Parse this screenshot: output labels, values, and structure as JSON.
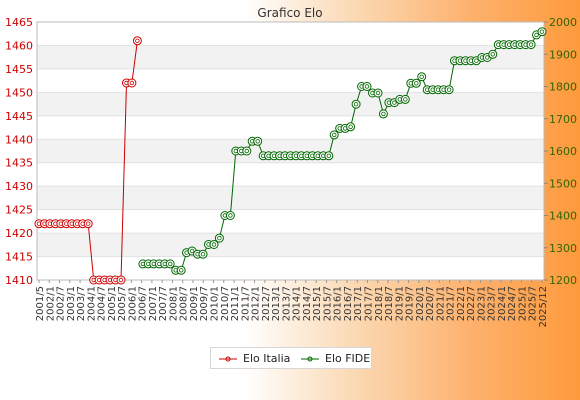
{
  "chart_data": {
    "type": "line",
    "title": "Grafico Elo",
    "x_ticks": [
      "2001/5",
      "2002/1",
      "2002/7",
      "2003/1",
      "2003/7",
      "2004/1",
      "2004/7",
      "2005/1",
      "2005/7",
      "2006/1",
      "2006/7",
      "2007/1",
      "2007/7",
      "2008/1",
      "2008/7",
      "2009/1",
      "2009/7",
      "2010/1",
      "2010/7",
      "2011/1",
      "2011/7",
      "2012/1",
      "2012/7",
      "2013/1",
      "2013/7",
      "2014/1",
      "2014/7",
      "2015/1",
      "2015/7",
      "2016/1",
      "2016/7",
      "2017/1",
      "2017/7",
      "2018/1",
      "2018/7",
      "2019/1",
      "2019/7",
      "2020/1",
      "2020/7",
      "2021/1",
      "2021/7",
      "2022/1",
      "2022/7",
      "2023/1",
      "2023/7",
      "2024/1",
      "2024/7",
      "2025/1",
      "2025/7",
      "2025/12"
    ],
    "series": [
      {
        "name": "Elo Italia",
        "color": "#cc0000",
        "axis": "left",
        "points": [
          [
            0,
            1422
          ],
          [
            1,
            1422
          ],
          [
            2,
            1422
          ],
          [
            3,
            1422
          ],
          [
            4,
            1422
          ],
          [
            5,
            1422
          ],
          [
            6,
            1422
          ],
          [
            7,
            1422
          ],
          [
            8,
            1422
          ],
          [
            9,
            1422
          ],
          [
            10,
            1410
          ],
          [
            11,
            1410
          ],
          [
            12,
            1410
          ],
          [
            13,
            1410
          ],
          [
            14,
            1410
          ],
          [
            15,
            1410
          ],
          [
            16,
            1452
          ],
          [
            17,
            1452
          ],
          [
            18,
            1461
          ]
        ]
      },
      {
        "name": "Elo FIDE",
        "color": "#006600",
        "axis": "right",
        "points": [
          [
            19,
            1250
          ],
          [
            20,
            1250
          ],
          [
            21,
            1250
          ],
          [
            22,
            1250
          ],
          [
            23,
            1250
          ],
          [
            24,
            1250
          ],
          [
            25,
            1230
          ],
          [
            26,
            1230
          ],
          [
            27,
            1285
          ],
          [
            28,
            1290
          ],
          [
            29,
            1280
          ],
          [
            30,
            1280
          ],
          [
            31,
            1310
          ],
          [
            32,
            1310
          ],
          [
            33,
            1330
          ],
          [
            34,
            1400
          ],
          [
            35,
            1400
          ],
          [
            36,
            1600
          ],
          [
            37,
            1600
          ],
          [
            38,
            1600
          ],
          [
            39,
            1630
          ],
          [
            40,
            1630
          ],
          [
            41,
            1585
          ],
          [
            42,
            1585
          ],
          [
            43,
            1585
          ],
          [
            44,
            1585
          ],
          [
            45,
            1585
          ],
          [
            46,
            1585
          ],
          [
            47,
            1585
          ],
          [
            48,
            1585
          ],
          [
            49,
            1585
          ],
          [
            50,
            1585
          ],
          [
            51,
            1585
          ],
          [
            52,
            1585
          ],
          [
            53,
            1585
          ],
          [
            54,
            1650
          ],
          [
            55,
            1670
          ],
          [
            56,
            1670
          ],
          [
            57,
            1675
          ],
          [
            58,
            1745
          ],
          [
            59,
            1800
          ],
          [
            60,
            1800
          ],
          [
            61,
            1780
          ],
          [
            62,
            1780
          ],
          [
            63,
            1715
          ],
          [
            64,
            1750
          ],
          [
            65,
            1750
          ],
          [
            66,
            1760
          ],
          [
            67,
            1760
          ],
          [
            68,
            1810
          ],
          [
            69,
            1810
          ],
          [
            70,
            1830
          ],
          [
            71,
            1790
          ],
          [
            72,
            1790
          ],
          [
            73,
            1790
          ],
          [
            74,
            1790
          ],
          [
            75,
            1790
          ],
          [
            76,
            1880
          ],
          [
            77,
            1880
          ],
          [
            78,
            1880
          ],
          [
            79,
            1880
          ],
          [
            80,
            1880
          ],
          [
            81,
            1890
          ],
          [
            82,
            1890
          ],
          [
            83,
            1900
          ],
          [
            84,
            1930
          ],
          [
            85,
            1930
          ],
          [
            86,
            1930
          ],
          [
            87,
            1930
          ],
          [
            88,
            1930
          ],
          [
            89,
            1930
          ],
          [
            90,
            1930
          ],
          [
            91,
            1960
          ],
          [
            92,
            1970
          ]
        ]
      }
    ],
    "y_left": {
      "min": 1410,
      "max": 1465,
      "step": 5,
      "color": "#cc0000"
    },
    "y_right": {
      "min": 1200,
      "max": 2000,
      "step": 100,
      "color": "#336600"
    },
    "grid": true,
    "legend_position": "bottom"
  }
}
